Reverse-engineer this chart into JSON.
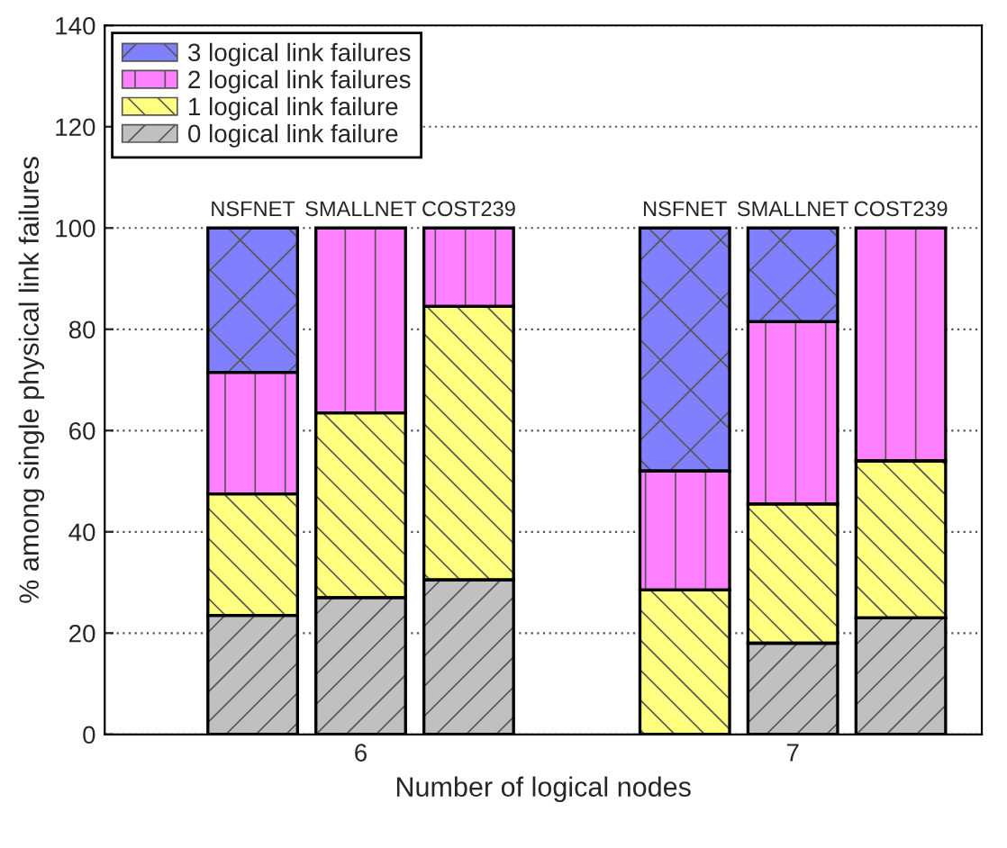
{
  "chart_data": {
    "type": "bar",
    "stacked": true,
    "categories": [
      "NSFNET",
      "SMALLNET",
      "COST239",
      null,
      "NSFNET",
      "SMALLNET",
      "COST239"
    ],
    "series": [
      {
        "name": "0 logical link failure",
        "color": "#c0c0c0",
        "values": [
          23.5,
          27,
          30.5,
          null,
          0,
          18,
          23
        ]
      },
      {
        "name": "1 logical link failure",
        "color": "#ffff80",
        "values": [
          24,
          36.5,
          54,
          null,
          28.5,
          27.5,
          31
        ]
      },
      {
        "name": "2 logical link failures",
        "color": "#ff80ff",
        "values": [
          24,
          36.5,
          15.5,
          null,
          23.5,
          36,
          46
        ]
      },
      {
        "name": "3 logical link failures",
        "color": "#8080ff",
        "values": [
          28.5,
          0,
          0,
          null,
          48,
          18.5,
          0
        ]
      }
    ],
    "xlabel": "Number of logical nodes",
    "ylabel": "% among single physical link failures",
    "annotations": [
      "6",
      "7"
    ],
    "ylim": [
      0,
      140
    ],
    "yticks": [
      0,
      20,
      40,
      60,
      80,
      100,
      120,
      140
    ],
    "grid": "y",
    "legend": "top left"
  }
}
